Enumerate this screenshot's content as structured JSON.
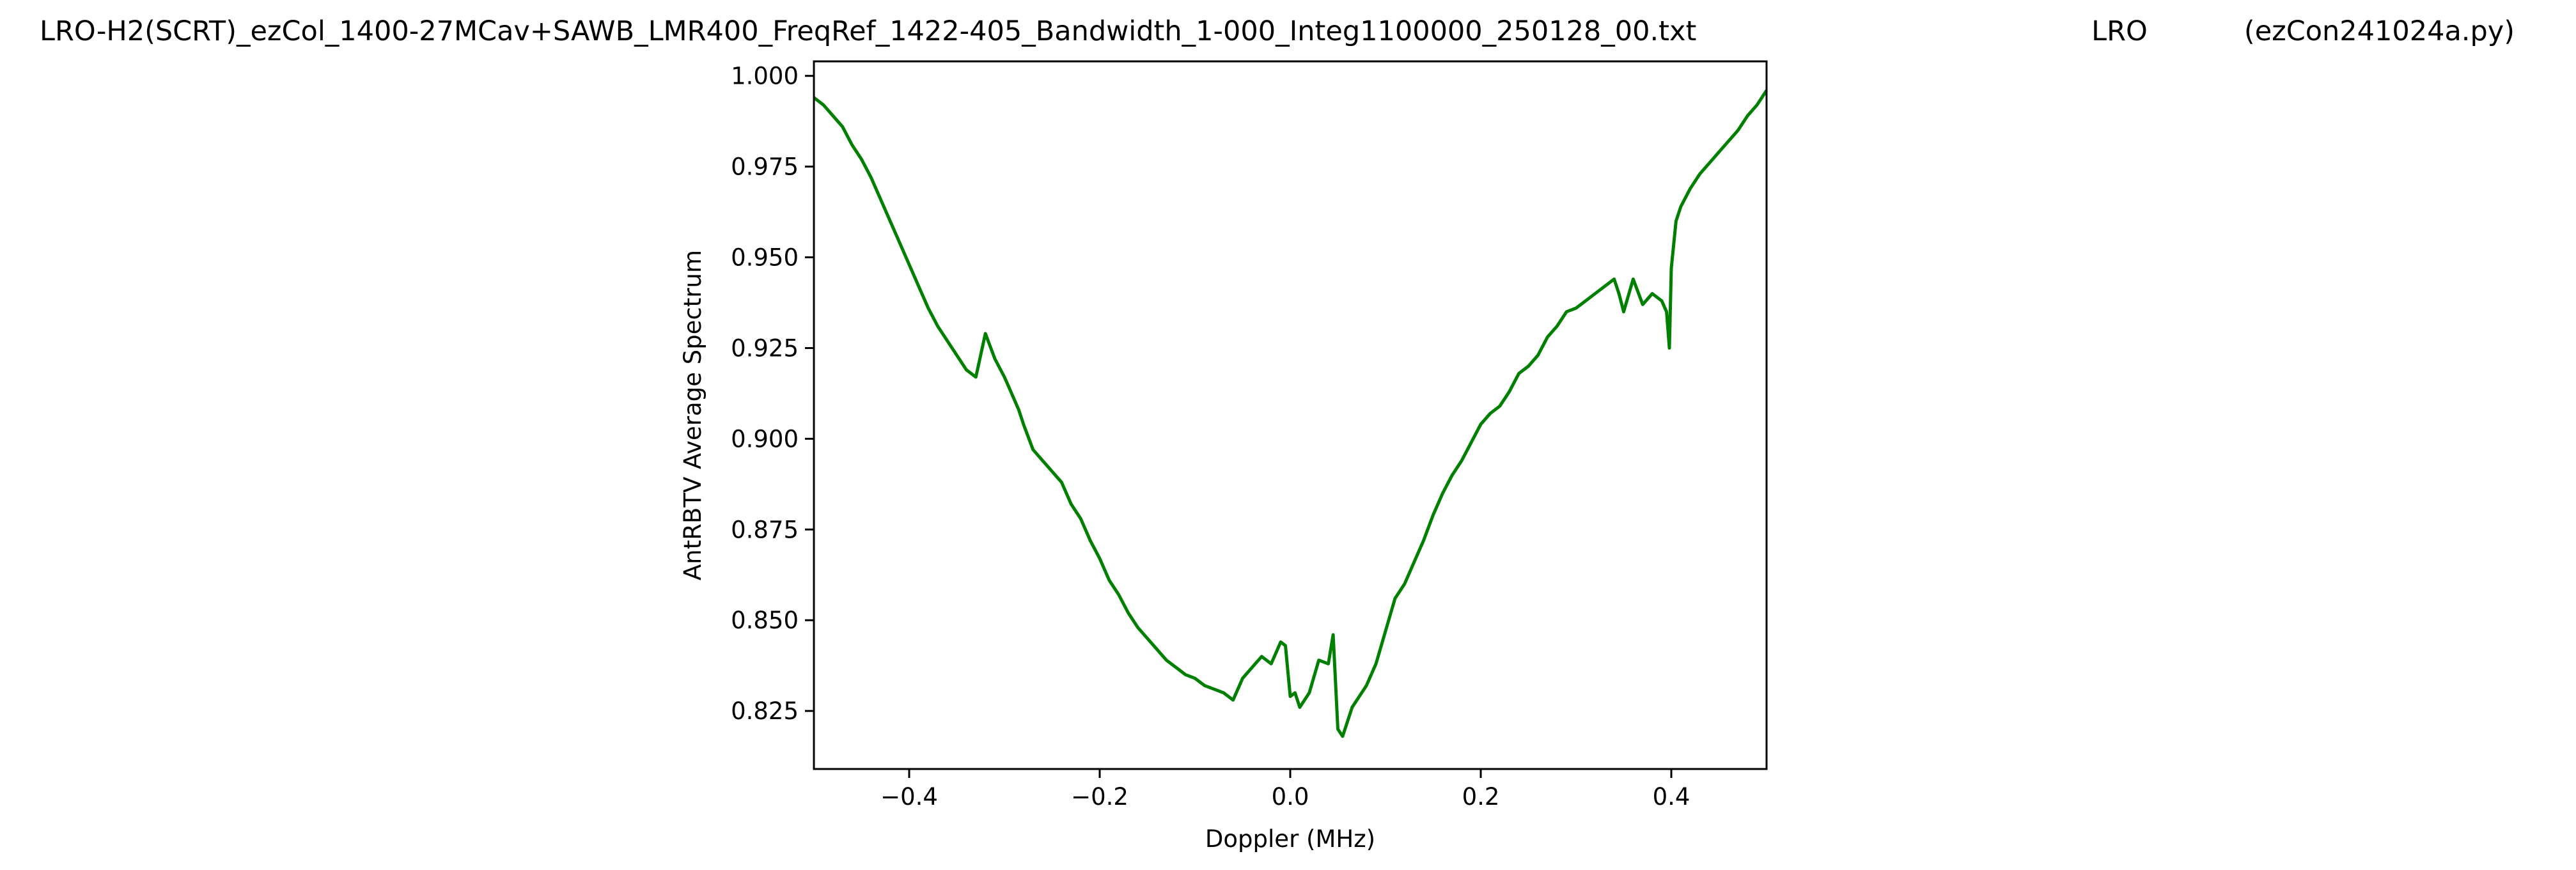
{
  "figure": {
    "title_left": "LRO-H2(SCRT)_ezCol_1400-27MCav+SAWB_LMR400_FreqRef_1422-405_Bandwidth_1-000_Integ1100000_250128_00.txt",
    "title_center": "LRO",
    "title_right": "(ezCon241024a.py)"
  },
  "chart_data": {
    "type": "line",
    "title": "",
    "xlabel": "Doppler (MHz)",
    "ylabel": "AntRBTV Average Spectrum",
    "xlim": [
      -0.5,
      0.5
    ],
    "ylim": [
      0.809,
      1.004
    ],
    "grid": false,
    "legend": "none",
    "x_ticks": [
      -0.4,
      -0.2,
      0.0,
      0.2,
      0.4
    ],
    "x_tick_labels": [
      "−0.4",
      "−0.2",
      "0.0",
      "0.2",
      "0.4"
    ],
    "y_ticks": [
      0.825,
      0.85,
      0.875,
      0.9,
      0.925,
      0.95,
      0.975,
      1.0
    ],
    "y_tick_labels": [
      "0.825",
      "0.850",
      "0.875",
      "0.900",
      "0.925",
      "0.950",
      "0.975",
      "1.000"
    ],
    "series": [
      {
        "color": "#008000",
        "x": [
          -0.5,
          -0.49,
          -0.48,
          -0.47,
          -0.46,
          -0.45,
          -0.44,
          -0.43,
          -0.42,
          -0.41,
          -0.4,
          -0.39,
          -0.38,
          -0.37,
          -0.36,
          -0.35,
          -0.34,
          -0.33,
          -0.32,
          -0.31,
          -0.3,
          -0.295,
          -0.29,
          -0.285,
          -0.28,
          -0.27,
          -0.26,
          -0.25,
          -0.24,
          -0.23,
          -0.22,
          -0.21,
          -0.2,
          -0.19,
          -0.18,
          -0.17,
          -0.16,
          -0.15,
          -0.14,
          -0.13,
          -0.12,
          -0.11,
          -0.1,
          -0.09,
          -0.08,
          -0.07,
          -0.06,
          -0.05,
          -0.04,
          -0.03,
          -0.02,
          -0.01,
          -0.005,
          0.0,
          0.005,
          0.01,
          0.02,
          0.03,
          0.04,
          0.045,
          0.05,
          0.055,
          0.06,
          0.065,
          0.07,
          0.08,
          0.09,
          0.1,
          0.11,
          0.12,
          0.13,
          0.14,
          0.15,
          0.16,
          0.17,
          0.18,
          0.19,
          0.2,
          0.21,
          0.22,
          0.23,
          0.24,
          0.25,
          0.26,
          0.27,
          0.28,
          0.29,
          0.3,
          0.31,
          0.32,
          0.33,
          0.34,
          0.345,
          0.35,
          0.36,
          0.37,
          0.38,
          0.39,
          0.395,
          0.398,
          0.4,
          0.405,
          0.41,
          0.42,
          0.43,
          0.44,
          0.45,
          0.46,
          0.47,
          0.48,
          0.49,
          0.5
        ],
        "y": [
          0.994,
          0.992,
          0.989,
          0.986,
          0.981,
          0.977,
          0.972,
          0.966,
          0.96,
          0.954,
          0.948,
          0.942,
          0.936,
          0.931,
          0.927,
          0.923,
          0.919,
          0.917,
          0.929,
          0.922,
          0.917,
          0.914,
          0.911,
          0.908,
          0.904,
          0.897,
          0.894,
          0.891,
          0.888,
          0.882,
          0.878,
          0.872,
          0.867,
          0.861,
          0.857,
          0.852,
          0.848,
          0.845,
          0.842,
          0.839,
          0.837,
          0.835,
          0.834,
          0.832,
          0.831,
          0.83,
          0.828,
          0.834,
          0.837,
          0.84,
          0.838,
          0.844,
          0.843,
          0.829,
          0.83,
          0.826,
          0.83,
          0.839,
          0.838,
          0.846,
          0.82,
          0.818,
          0.822,
          0.826,
          0.828,
          0.832,
          0.838,
          0.847,
          0.856,
          0.86,
          0.866,
          0.872,
          0.879,
          0.885,
          0.89,
          0.894,
          0.899,
          0.904,
          0.907,
          0.909,
          0.913,
          0.918,
          0.92,
          0.923,
          0.928,
          0.931,
          0.935,
          0.936,
          0.938,
          0.94,
          0.942,
          0.944,
          0.94,
          0.935,
          0.944,
          0.937,
          0.94,
          0.938,
          0.935,
          0.925,
          0.947,
          0.96,
          0.964,
          0.969,
          0.973,
          0.976,
          0.979,
          0.982,
          0.985,
          0.989,
          0.992,
          0.996
        ]
      }
    ]
  }
}
